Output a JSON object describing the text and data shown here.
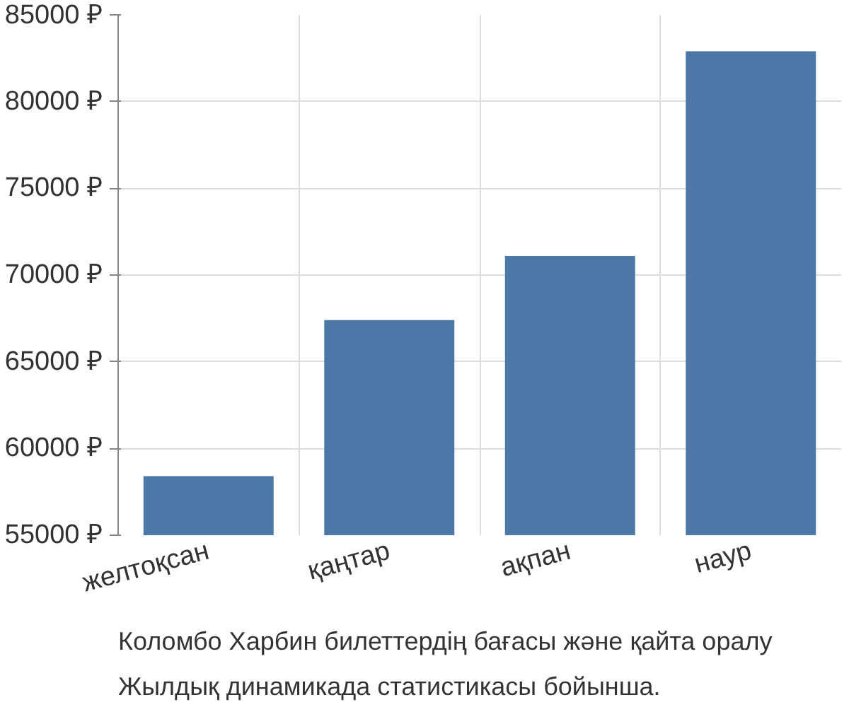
{
  "chart_data": {
    "type": "bar",
    "categories": [
      "желтоқсан",
      "қаңтар",
      "ақпан",
      "наур"
    ],
    "values": [
      58400,
      67400,
      71100,
      82900
    ],
    "color": "#4c78a8",
    "ylim": [
      55000,
      85000
    ],
    "yticks": [
      {
        "value": 55000,
        "label": "55000 ₽"
      },
      {
        "value": 60000,
        "label": "60000 ₽"
      },
      {
        "value": 65000,
        "label": "65000 ₽"
      },
      {
        "value": 70000,
        "label": "70000 ₽"
      },
      {
        "value": 75000,
        "label": "75000 ₽"
      },
      {
        "value": 80000,
        "label": "80000 ₽"
      },
      {
        "value": 85000,
        "label": "85000 ₽"
      }
    ],
    "grid": true,
    "annotations": [
      "Коломбо Харбин билеттердің бағасы және қайта оралу",
      "Жылдық динамикада статистикасы бойынша."
    ]
  }
}
